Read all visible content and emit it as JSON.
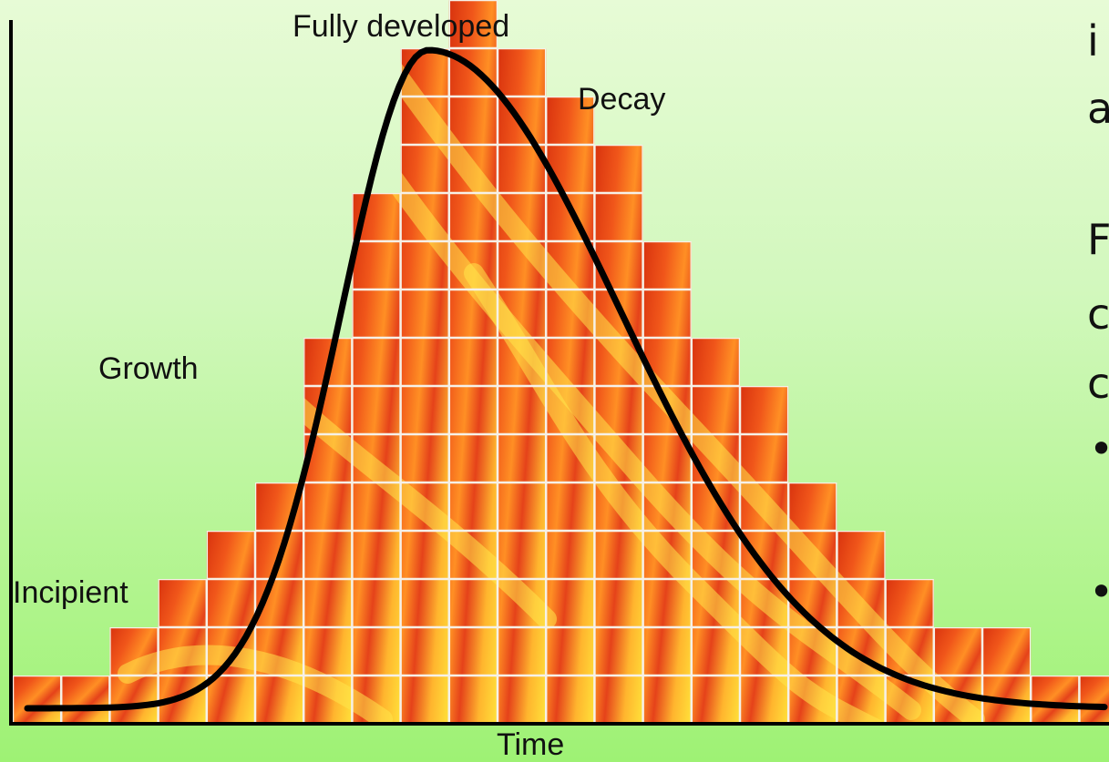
{
  "labels": {
    "peak": "Fully developed",
    "decay": "Decay",
    "growth": "Growth",
    "incipient": "Incipient",
    "x_axis": "Time"
  },
  "side_text": {
    "line1": "i",
    "line2": "a",
    "line3": "F",
    "line4": "c",
    "line5": "c",
    "bullet1": "•",
    "bullet2": "•"
  },
  "chart_data": {
    "type": "bar",
    "xlabel": "Time",
    "ylabel": "",
    "values": [
      1,
      1,
      2,
      3,
      4,
      5,
      8,
      11,
      14,
      15,
      14,
      13,
      12,
      10,
      8,
      7,
      5,
      4,
      3,
      2,
      2,
      1,
      1
    ],
    "ylim": [
      0,
      15
    ],
    "stages": [
      "Incipient",
      "Growth",
      "Fully developed",
      "Decay"
    ],
    "colors": {
      "curve": "#000000",
      "grid": "#f6f1e8",
      "fire_dark": "#d9330f",
      "fire_light": "#ffe23a",
      "axis": "#000000"
    }
  }
}
